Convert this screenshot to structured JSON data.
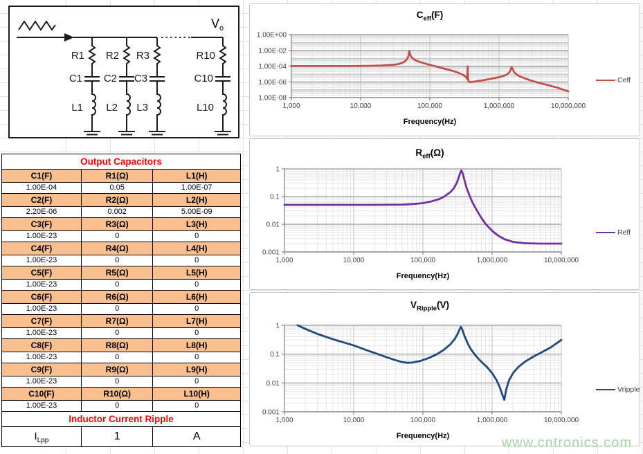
{
  "watermark": {
    "text": "www.cntronics.com",
    "color": "#a3d6a6"
  },
  "circuit": {
    "vo_main": "V",
    "vo_sub": "o",
    "branches": [
      {
        "r": "R1",
        "c": "C1",
        "l": "L1"
      },
      {
        "r": "R2",
        "c": "C2",
        "l": "L2"
      },
      {
        "r": "R3",
        "c": "C3",
        "l": "L3"
      },
      {
        "r": "R10",
        "c": "C10",
        "l": "L10"
      }
    ]
  },
  "table": {
    "title": "Output Capacitors",
    "header_bg": "#FABF8F",
    "title_color": "#FF0000",
    "groups": [
      {
        "headers": [
          "C1(F)",
          "R1(Ω)",
          "L1(H)"
        ],
        "values": [
          "1.00E-04",
          "0.05",
          "1.00E-07"
        ]
      },
      {
        "headers": [
          "C2(F)",
          "R2(Ω)",
          "L2(H)"
        ],
        "values": [
          "2.20E-06",
          "0.002",
          "5.00E-09"
        ]
      },
      {
        "headers": [
          "C3(F)",
          "R3(Ω)",
          "L3(H)"
        ],
        "values": [
          "1.00E-23",
          "0",
          "0"
        ]
      },
      {
        "headers": [
          "C4(F)",
          "R4(Ω)",
          "L4(H)"
        ],
        "values": [
          "1.00E-23",
          "0",
          "0"
        ]
      },
      {
        "headers": [
          "C5(F)",
          "R5(Ω)",
          "L5(H)"
        ],
        "values": [
          "1.00E-23",
          "0",
          "0"
        ]
      },
      {
        "headers": [
          "C6(F)",
          "R6(Ω)",
          "L6(H)"
        ],
        "values": [
          "1.00E-23",
          "0",
          "0"
        ]
      },
      {
        "headers": [
          "C7(F)",
          "R7(Ω)",
          "L7(H)"
        ],
        "values": [
          "1.00E-23",
          "0",
          "0"
        ]
      },
      {
        "headers": [
          "C8(F)",
          "R8(Ω)",
          "L8(H)"
        ],
        "values": [
          "1.00E-23",
          "0",
          "0"
        ]
      },
      {
        "headers": [
          "C9(F)",
          "R9(Ω)",
          "L9(H)"
        ],
        "values": [
          "1.00E-23",
          "0",
          "0"
        ]
      },
      {
        "headers": [
          "C10(F)",
          "R10(Ω)",
          "L10(H)"
        ],
        "values": [
          "1.00E-23",
          "0",
          "0"
        ]
      }
    ],
    "ripple_title": "Inductor Current Ripple",
    "ripple_row": {
      "label_main": "I",
      "label_sub": "Lpp",
      "value": "1",
      "unit": "A"
    }
  },
  "chart_data": [
    {
      "type": "line",
      "title_main": "C",
      "title_sub": "eff",
      "title_unit": "(F)",
      "xlabel": "Frequency(Hz)",
      "legend": "Ceff",
      "color": "#C0504D",
      "xlim": [
        1000,
        10000000
      ],
      "ylim": [
        1e-08,
        1
      ],
      "x_ticks": [
        "1,000",
        "10,000",
        "100,000",
        "1,000,000",
        "10,000,000"
      ],
      "y_ticks": [
        "1.00E+00",
        "1.00E-02",
        "1.00E-04",
        "1.00E-06",
        "1.00E-08"
      ],
      "x": [
        1000,
        3000,
        6000,
        10000,
        15000,
        20000,
        25000,
        30000,
        35000,
        40000,
        44000,
        47000,
        49000,
        50300,
        51500,
        53000,
        56000,
        60000,
        70000,
        85000,
        100000,
        130000,
        160000,
        200000,
        250000,
        300000,
        330000,
        348000,
        352000,
        356000,
        362000,
        370000,
        400000,
        450000,
        550000,
        700000,
        850000,
        1000000,
        1150000,
        1300000,
        1400000,
        1480000,
        1520000,
        1560000,
        1650000,
        1800000,
        2000000,
        2400000,
        3000000,
        4000000,
        5000000,
        7000000,
        10000000
      ],
      "y": [
        0.000102,
        0.000102,
        0.000103,
        0.000105,
        0.00011,
        0.000118,
        0.00013,
        0.00015,
        0.000185,
        0.00026,
        0.00042,
        0.0008,
        0.0018,
        0.008,
        0.004,
        0.002,
        0.00105,
        0.00065,
        0.00036,
        0.00021,
        0.000145,
        7.8e-05,
        4.8e-05,
        2.9e-05,
        1.6e-05,
        8e-06,
        4.5e-06,
        2.2e-06,
        9.5e-05,
        4e-06,
        1.3e-06,
        9.5e-07,
        9.8e-07,
        1.1e-06,
        1.45e-06,
        2.1e-06,
        2.9e-06,
        3.9e-06,
        5.5e-06,
        8.5e-06,
        1.5e-05,
        3.5e-05,
        7.6e-05,
        4.5e-05,
        1.8e-05,
        8.5e-06,
        5e-06,
        2.6e-06,
        1.35e-06,
        6.5e-07,
        4e-07,
        1.8e-07,
        6e-08
      ]
    },
    {
      "type": "line",
      "title_main": "R",
      "title_sub": "eff",
      "title_unit": "(Ω)",
      "xlabel": "Frequency(Hz)",
      "legend": "Reff",
      "color": "#7030A0",
      "xlim": [
        1000,
        10000000
      ],
      "ylim": [
        0.001,
        1
      ],
      "x_ticks": [
        "1,000",
        "10,000",
        "100,000",
        "1,000,000",
        "10,000,000"
      ],
      "y_ticks": [
        "1",
        "0.1",
        "0.01",
        "0.001"
      ],
      "x": [
        1000,
        2000,
        5000,
        10000,
        20000,
        30000,
        50000,
        70000,
        100000,
        130000,
        170000,
        200000,
        250000,
        280000,
        310000,
        330000,
        350000,
        360000,
        375000,
        400000,
        430000,
        470000,
        520000,
        600000,
        700000,
        800000,
        1000000,
        1200000,
        1500000,
        2000000,
        3000000,
        5000000,
        10000000
      ],
      "y": [
        0.05,
        0.05,
        0.05,
        0.05,
        0.0502,
        0.0505,
        0.051,
        0.0535,
        0.058,
        0.066,
        0.08,
        0.097,
        0.145,
        0.2,
        0.32,
        0.5,
        0.78,
        0.88,
        0.7,
        0.38,
        0.2,
        0.11,
        0.062,
        0.032,
        0.017,
        0.0105,
        0.0058,
        0.004,
        0.0029,
        0.0023,
        0.00205,
        0.002,
        0.002
      ]
    },
    {
      "type": "line",
      "title_main": "V",
      "title_sub": "Ripple",
      "title_unit": "(V)",
      "xlabel": "Frequency(Hz)",
      "legend": "Vripple",
      "color": "#1F497D",
      "xlim": [
        1000,
        10000000
      ],
      "ylim": [
        0.001,
        1
      ],
      "x_ticks": [
        "1,000",
        "10,000",
        "100,000",
        "1,000,000",
        "10,000,000"
      ],
      "y_ticks": [
        "1",
        "0.1",
        "0.01",
        "0.001"
      ],
      "x": [
        1550,
        2000,
        3000,
        5000,
        8000,
        10000,
        15000,
        20000,
        30000,
        40000,
        50000,
        60000,
        70000,
        90000,
        120000,
        160000,
        200000,
        250000,
        290000,
        320000,
        345000,
        355000,
        370000,
        400000,
        450000,
        500000,
        600000,
        700000,
        850000,
        1000000,
        1150000,
        1300000,
        1400000,
        1500000,
        1600000,
        1750000,
        2000000,
        2400000,
        3000000,
        4000000,
        5000000,
        7000000,
        10000000
      ],
      "y": [
        1.0,
        0.75,
        0.5,
        0.33,
        0.235,
        0.2,
        0.14,
        0.11,
        0.078,
        0.062,
        0.053,
        0.05,
        0.051,
        0.057,
        0.072,
        0.1,
        0.14,
        0.22,
        0.34,
        0.52,
        0.8,
        0.88,
        0.72,
        0.42,
        0.22,
        0.14,
        0.08,
        0.054,
        0.035,
        0.022,
        0.013,
        0.0068,
        0.004,
        0.0026,
        0.006,
        0.012,
        0.022,
        0.036,
        0.055,
        0.083,
        0.11,
        0.17,
        0.31
      ]
    }
  ]
}
